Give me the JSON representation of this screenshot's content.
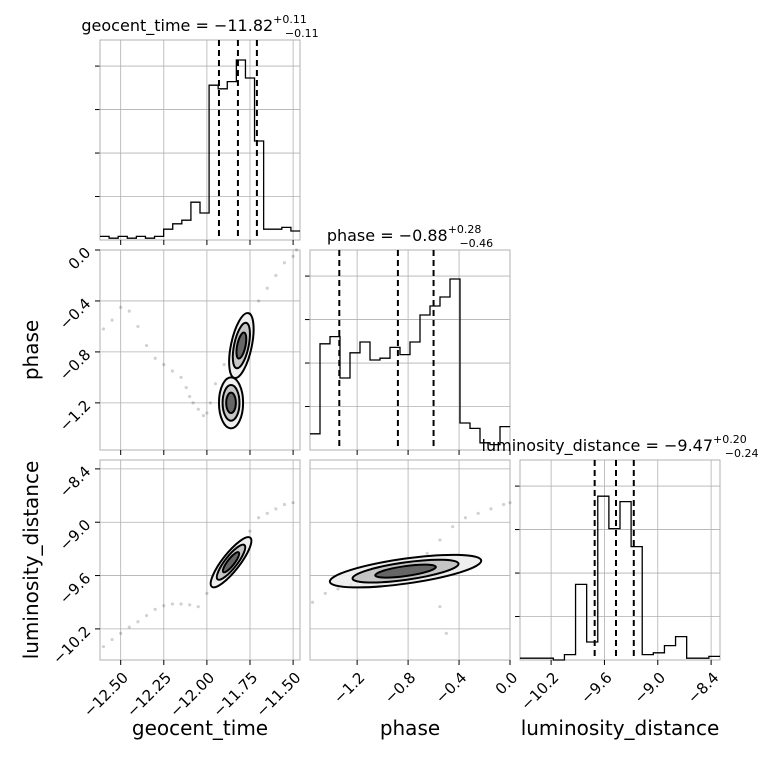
{
  "chart_data": {
    "type": "corner",
    "parameters": [
      "geocent_time",
      "phase",
      "luminosity_distance"
    ],
    "titles": [
      {
        "text": "geocent_time = −11.82",
        "sup": "+0.11",
        "sub": "−0.11"
      },
      {
        "text": "phase = −0.88",
        "sup": "+0.28",
        "sub": "−0.46"
      },
      {
        "text": "luminosity_distance = −9.47",
        "sup": "+0.20",
        "sub": "−0.24"
      }
    ],
    "axis_labels": {
      "x": [
        "geocent_time",
        "phase",
        "luminosity_distance"
      ],
      "y": [
        "phase",
        "luminosity_distance"
      ]
    },
    "ranges": {
      "geocent_time": [
        -12.62,
        -11.46
      ],
      "phase": [
        -1.57,
        0.0
      ],
      "luminosity_distance": [
        -10.55,
        -8.3
      ]
    },
    "ticks": {
      "geocent_time": {
        "values": [
          -12.5,
          -12.25,
          -12.0,
          -11.75,
          -11.5
        ],
        "labels": [
          "−12.50",
          "−12.25",
          "−12.00",
          "−11.75",
          "−11.50"
        ]
      },
      "phase": {
        "values": [
          -1.2,
          -0.8,
          -0.4,
          0.0
        ],
        "labels": [
          "−1.2",
          "−0.8",
          "−0.4",
          "0.0"
        ]
      },
      "luminosity_distance": {
        "values": [
          -10.2,
          -9.6,
          -9.0,
          -8.4
        ],
        "labels": [
          "−10.2",
          "−9.6",
          "−9.0",
          "−8.4"
        ]
      }
    },
    "quantiles": {
      "geocent_time": [
        -11.93,
        -11.82,
        -11.71
      ],
      "phase": [
        -1.34,
        -0.88,
        -0.6
      ],
      "luminosity_distance": [
        -9.71,
        -9.47,
        -9.27
      ]
    },
    "histograms": {
      "geocent_time": {
        "start": -12.62,
        "end": -11.46,
        "counts": [
          0.02,
          0.01,
          0.02,
          0.01,
          0.02,
          0.01,
          0.02,
          0.06,
          0.09,
          0.11,
          0.21,
          0.15,
          0.86,
          0.84,
          0.88,
          1.0,
          0.9,
          0.55,
          0.06,
          0.06,
          0.07,
          0.05
        ]
      },
      "phase": {
        "start": -1.57,
        "end": 0.0,
        "counts": [
          0.09,
          0.59,
          0.63,
          0.4,
          0.54,
          0.6,
          0.5,
          0.51,
          0.57,
          0.53,
          0.6,
          0.75,
          0.8,
          0.85,
          0.95,
          0.15,
          0.12,
          0.04,
          0.03,
          0.13
        ]
      },
      "luminosity_distance": {
        "start": -10.55,
        "end": -8.3,
        "counts": [
          0.01,
          0.01,
          0.01,
          0.0,
          0.03,
          0.42,
          0.1,
          0.91,
          0.73,
          0.88,
          0.63,
          0.03,
          0.04,
          0.08,
          0.13,
          0.01,
          0.01,
          0.02
        ]
      }
    },
    "grid": true,
    "legend": "none"
  }
}
